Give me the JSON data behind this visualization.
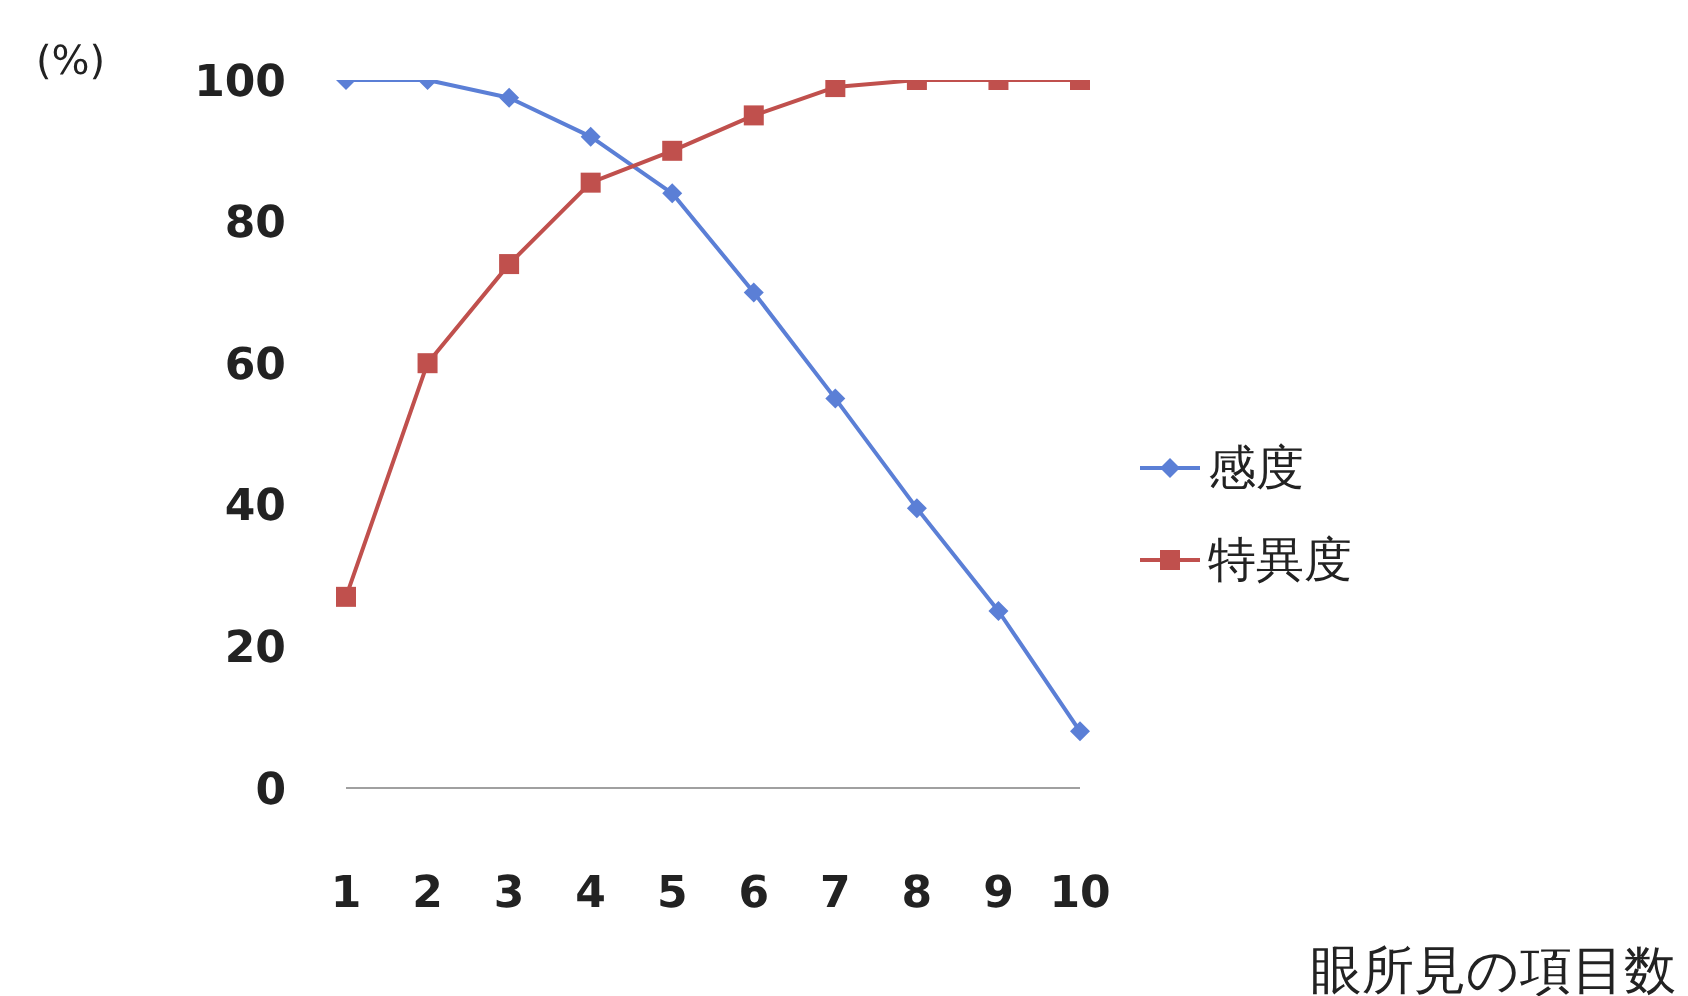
{
  "chart_data": {
    "type": "line",
    "ylabel": "(%)",
    "xlabel": "眼所見の項目数",
    "categories": [
      "1",
      "2",
      "3",
      "4",
      "5",
      "6",
      "7",
      "8",
      "9",
      "10"
    ],
    "ylim": [
      0,
      100
    ],
    "yticks": [
      0,
      20,
      40,
      60,
      80,
      100
    ],
    "grid": false,
    "legend": "right",
    "series": [
      {
        "name": "感度",
        "color": "#5b7fd6",
        "marker": "diamond",
        "values": [
          100,
          100,
          97.5,
          92,
          84,
          70,
          55,
          39.5,
          25,
          8
        ]
      },
      {
        "name": "特異度",
        "color": "#c0504d",
        "marker": "square",
        "values": [
          27,
          60,
          74,
          85.5,
          90,
          95,
          99,
          100,
          100,
          100
        ]
      }
    ]
  }
}
